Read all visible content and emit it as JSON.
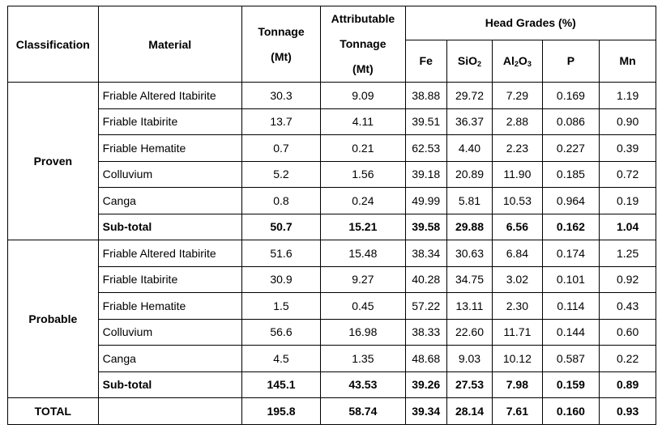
{
  "headers": {
    "classification": "Classification",
    "material": "Material",
    "tonnage_line1": "Tonnage",
    "tonnage_line2": "(Mt)",
    "attr_line1": "Attributable",
    "attr_line2": "Tonnage",
    "attr_line3": "(Mt)",
    "head_grades": "Head Grades (%)",
    "fe": "Fe",
    "sio2_base": "SiO",
    "sio2_sub": "2",
    "al2o3_a": "Al",
    "al2o3_sub1": "2",
    "al2o3_b": "O",
    "al2o3_sub2": "3",
    "p": "P",
    "mn": "Mn"
  },
  "proven": {
    "label": "Proven",
    "rows": [
      {
        "material": "Friable Altered Itabirite",
        "tonnage": "30.3",
        "attr": "9.09",
        "fe": "38.88",
        "sio2": "29.72",
        "al2o3": "7.29",
        "p": "0.169",
        "mn": "1.19"
      },
      {
        "material": "Friable Itabirite",
        "tonnage": "13.7",
        "attr": "4.11",
        "fe": "39.51",
        "sio2": "36.37",
        "al2o3": "2.88",
        "p": "0.086",
        "mn": "0.90"
      },
      {
        "material": "Friable Hematite",
        "tonnage": "0.7",
        "attr": "0.21",
        "fe": "62.53",
        "sio2": "4.40",
        "al2o3": "2.23",
        "p": "0.227",
        "mn": "0.39"
      },
      {
        "material": "Colluvium",
        "tonnage": "5.2",
        "attr": "1.56",
        "fe": "39.18",
        "sio2": "20.89",
        "al2o3": "11.90",
        "p": "0.185",
        "mn": "0.72"
      },
      {
        "material": "Canga",
        "tonnage": "0.8",
        "attr": "0.24",
        "fe": "49.99",
        "sio2": "5.81",
        "al2o3": "10.53",
        "p": "0.964",
        "mn": "0.19"
      }
    ],
    "subtotal": {
      "material": "Sub-total",
      "tonnage": "50.7",
      "attr": "15.21",
      "fe": "39.58",
      "sio2": "29.88",
      "al2o3": "6.56",
      "p": "0.162",
      "mn": "1.04"
    }
  },
  "probable": {
    "label": "Probable",
    "rows": [
      {
        "material": "Friable Altered Itabirite",
        "tonnage": "51.6",
        "attr": "15.48",
        "fe": "38.34",
        "sio2": "30.63",
        "al2o3": "6.84",
        "p": "0.174",
        "mn": "1.25"
      },
      {
        "material": "Friable Itabirite",
        "tonnage": "30.9",
        "attr": "9.27",
        "fe": "40.28",
        "sio2": "34.75",
        "al2o3": "3.02",
        "p": "0.101",
        "mn": "0.92"
      },
      {
        "material": "Friable Hematite",
        "tonnage": "1.5",
        "attr": "0.45",
        "fe": "57.22",
        "sio2": "13.11",
        "al2o3": "2.30",
        "p": "0.114",
        "mn": "0.43"
      },
      {
        "material": "Colluvium",
        "tonnage": "56.6",
        "attr": "16.98",
        "fe": "38.33",
        "sio2": "22.60",
        "al2o3": "11.71",
        "p": "0.144",
        "mn": "0.60"
      },
      {
        "material": "Canga",
        "tonnage": "4.5",
        "attr": "1.35",
        "fe": "48.68",
        "sio2": "9.03",
        "al2o3": "10.12",
        "p": "0.587",
        "mn": "0.22"
      }
    ],
    "subtotal": {
      "material": "Sub-total",
      "tonnage": "145.1",
      "attr": "43.53",
      "fe": "39.26",
      "sio2": "27.53",
      "al2o3": "7.98",
      "p": "0.159",
      "mn": "0.89"
    }
  },
  "total": {
    "label": "TOTAL",
    "tonnage": "195.8",
    "attr": "58.74",
    "fe": "39.34",
    "sio2": "28.14",
    "al2o3": "7.61",
    "p": "0.160",
    "mn": "0.93"
  }
}
